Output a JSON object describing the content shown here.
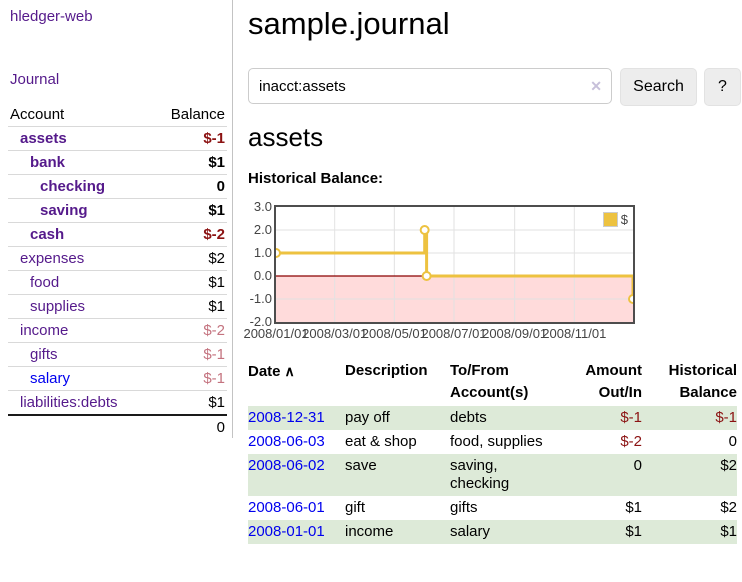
{
  "sidebar": {
    "brand": "hledger-web",
    "nav_journal": "Journal",
    "header": {
      "account": "Account",
      "balance": "Balance"
    },
    "accounts": [
      {
        "name": "assets",
        "balance": "$-1",
        "indent": 1,
        "bold": true,
        "neg": "strong"
      },
      {
        "name": "bank",
        "balance": "$1",
        "indent": 2,
        "bold": true,
        "neg": "none"
      },
      {
        "name": "checking",
        "balance": "0",
        "indent": 3,
        "bold": true,
        "neg": "none"
      },
      {
        "name": "saving",
        "balance": "$1",
        "indent": 3,
        "bold": true,
        "neg": "none"
      },
      {
        "name": "cash",
        "balance": "$-2",
        "indent": 2,
        "bold": true,
        "neg": "strong"
      },
      {
        "name": "expenses",
        "balance": "$2",
        "indent": 1,
        "bold": false,
        "neg": "none"
      },
      {
        "name": "food",
        "balance": "$1",
        "indent": 2,
        "bold": false,
        "neg": "none"
      },
      {
        "name": "supplies",
        "balance": "$1",
        "indent": 2,
        "bold": false,
        "neg": "none"
      },
      {
        "name": "income",
        "balance": "$-2",
        "indent": 1,
        "bold": false,
        "neg": "soft"
      },
      {
        "name": "gifts",
        "balance": "$-1",
        "indent": 2,
        "bold": false,
        "neg": "soft"
      },
      {
        "name": "salary",
        "balance": "$-1",
        "indent": 2,
        "bold": false,
        "neg": "soft",
        "blue": true
      },
      {
        "name": "liabilities:debts",
        "balance": "$1",
        "indent": 1,
        "bold": false,
        "neg": "none"
      }
    ],
    "total": "0"
  },
  "main": {
    "title": "sample.journal",
    "search": {
      "value": "inacct:assets",
      "clear_glyph": "✕",
      "search_label": "Search",
      "help_label": "?"
    },
    "account_heading": "assets",
    "section_label": "Historical Balance:"
  },
  "chart_data": {
    "type": "line",
    "step": true,
    "title": "Historical Balance:",
    "series": [
      {
        "name": "$",
        "color": "#edc240",
        "points": [
          [
            "2008-01-01",
            1
          ],
          [
            "2008-06-01",
            2
          ],
          [
            "2008-06-03",
            0
          ],
          [
            "2008-12-31",
            -1
          ]
        ]
      }
    ],
    "ylim": [
      -2,
      3
    ],
    "yticks": [
      3.0,
      2.0,
      1.0,
      0.0,
      -1.0,
      -2.0
    ],
    "xticks": [
      {
        "label": "2008/01/01",
        "date": "2008-01-01"
      },
      {
        "label": "2008/03/01",
        "date": "2008-03-01"
      },
      {
        "label": "2008/05/01",
        "date": "2008-05-01"
      },
      {
        "label": "2008/07/01",
        "date": "2008-07-01"
      },
      {
        "label": "2008/09/01",
        "date": "2008-09-01"
      },
      {
        "label": "2008/11/01",
        "date": "2008-11-01"
      }
    ],
    "xrange": [
      "2008-01-01",
      "2008-12-31"
    ],
    "grid": true,
    "legend_position": "top-right",
    "negative_region_color": "rgba(255,160,160,0.38)",
    "zero_line_color": "#8b0000",
    "gridline_color": "#e2e2e2"
  },
  "register": {
    "headers": [
      {
        "l1": "Date"
      },
      {
        "l1": "Description"
      },
      {
        "l1": "To/From",
        "l2": "Account(s)"
      },
      {
        "l1": "Amount",
        "l2": "Out/In"
      },
      {
        "l1": "Historical",
        "l2": "Balance"
      }
    ],
    "sort_indicator": "∧",
    "rows": [
      {
        "date": "2008-12-31",
        "description": "pay off",
        "accounts": "debts",
        "amount": "$-1",
        "balance": "$-1"
      },
      {
        "date": "2008-06-03",
        "description": "eat & shop",
        "accounts": "food, supplies",
        "amount": "$-2",
        "balance": "0"
      },
      {
        "date": "2008-06-02",
        "description": "save",
        "accounts": "saving,\nchecking",
        "amount": "0",
        "balance": "$2"
      },
      {
        "date": "2008-06-01",
        "description": "gift",
        "accounts": "gifts",
        "amount": "$1",
        "balance": "$2"
      },
      {
        "date": "2008-01-01",
        "description": "income",
        "accounts": "salary",
        "amount": "$1",
        "balance": "$1"
      }
    ]
  },
  "colors": {
    "visited_link_purple": "#551a8b",
    "link_blue": "#0000ee",
    "negative_strong": "#8b1212",
    "negative_soft": "#c4737f",
    "row_stripe_green": "#ddead8",
    "chart_line_gold": "#edc240"
  }
}
